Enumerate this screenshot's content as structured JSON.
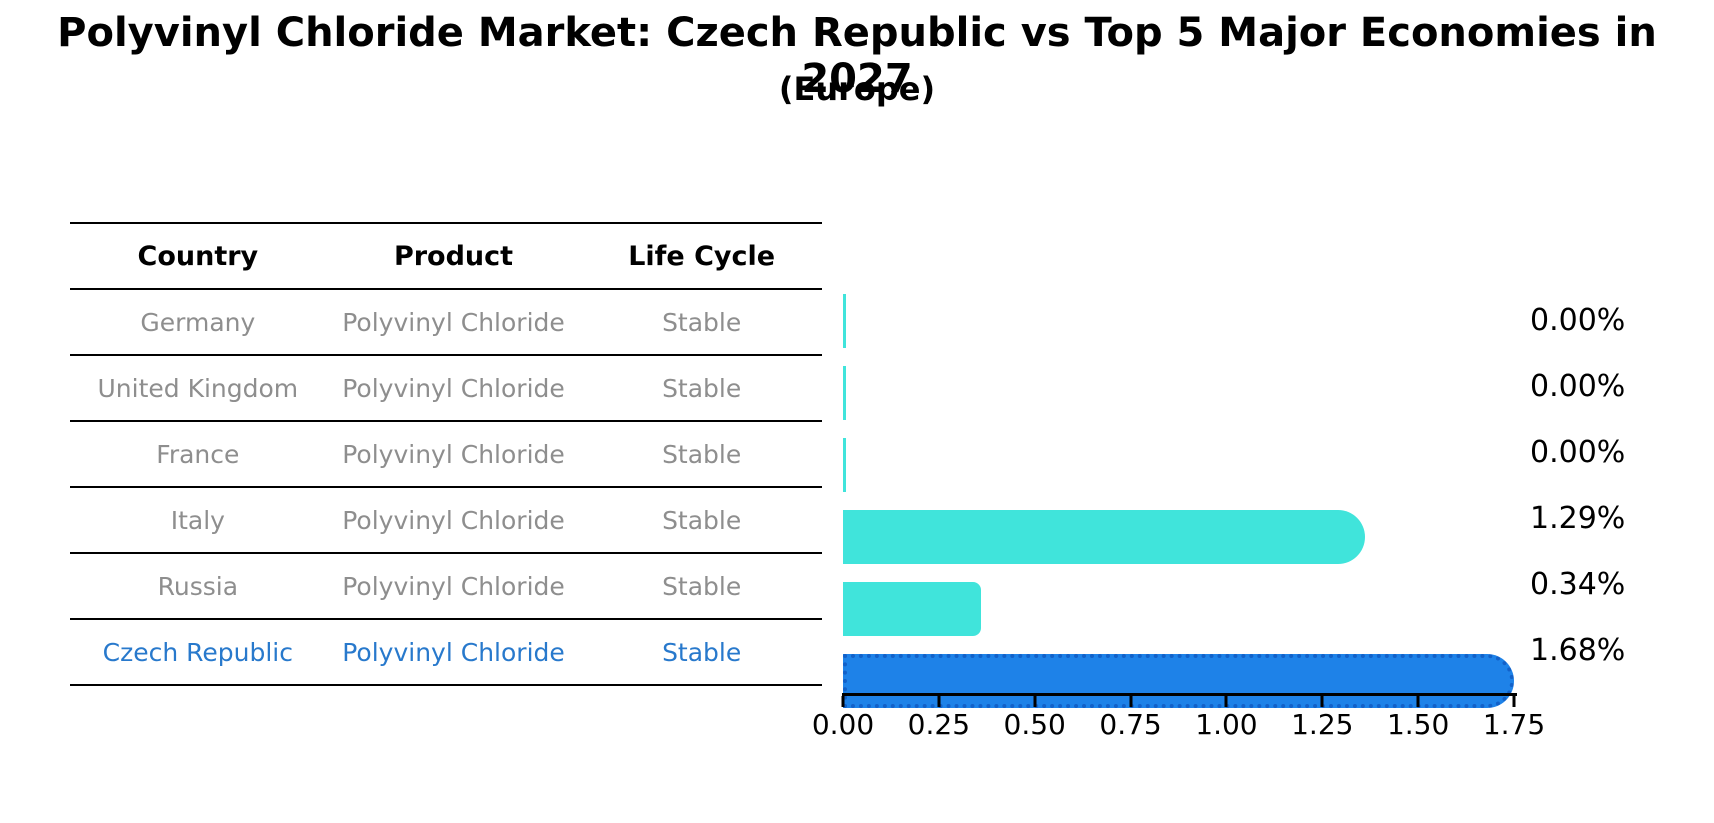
{
  "title": "Polyvinyl Chloride Market: Czech Republic vs Top 5 Major Economies in 2027",
  "subtitle": "(Europe)",
  "table": {
    "headers": [
      "Country",
      "Product",
      "Life Cycle"
    ],
    "rows": [
      {
        "country": "Germany",
        "product": "Polyvinyl Chloride",
        "life_cycle": "Stable",
        "highlight": false
      },
      {
        "country": "United Kingdom",
        "product": "Polyvinyl Chloride",
        "life_cycle": "Stable",
        "highlight": false
      },
      {
        "country": "France",
        "product": "Polyvinyl Chloride",
        "life_cycle": "Stable",
        "highlight": false
      },
      {
        "country": "Italy",
        "product": "Polyvinyl Chloride",
        "life_cycle": "Stable",
        "highlight": false
      },
      {
        "country": "Russia",
        "product": "Polyvinyl Chloride",
        "life_cycle": "Stable",
        "highlight": false
      },
      {
        "country": "Czech Republic",
        "product": "Polyvinyl Chloride",
        "life_cycle": "Stable",
        "highlight": true
      }
    ]
  },
  "chart_data": {
    "type": "bar",
    "orientation": "horizontal",
    "title": "Polyvinyl Chloride Market: Czech Republic vs Top 5 Major Economies in 2027",
    "subtitle": "(Europe)",
    "categories": [
      "Germany",
      "United Kingdom",
      "France",
      "Italy",
      "Russia",
      "Czech Republic"
    ],
    "values": [
      0.0,
      0.0,
      0.0,
      1.29,
      0.34,
      1.68
    ],
    "value_labels": [
      "0.00%",
      "0.00%",
      "0.00%",
      "1.29%",
      "0.34%",
      "1.68%"
    ],
    "value_unit": "%",
    "xlim": [
      0,
      1.75
    ],
    "x_ticks": [
      "0.00",
      "0.25",
      "0.50",
      "0.75",
      "1.00",
      "1.25",
      "1.50",
      "1.75"
    ],
    "grid": false,
    "legend": false,
    "highlight_index": 5,
    "bar_color": "#40e4db",
    "highlight_color": "#1e82e8",
    "highlight_edge_color": "#1261c9"
  },
  "colors": {
    "background": "#ffffff",
    "heading_text": "#000000",
    "table_text": "#8e8e8e",
    "highlight_text": "#2879cc",
    "bar_cyan": "#40e4db",
    "bar_blue": "#1e82e8",
    "axis": "#000000"
  }
}
